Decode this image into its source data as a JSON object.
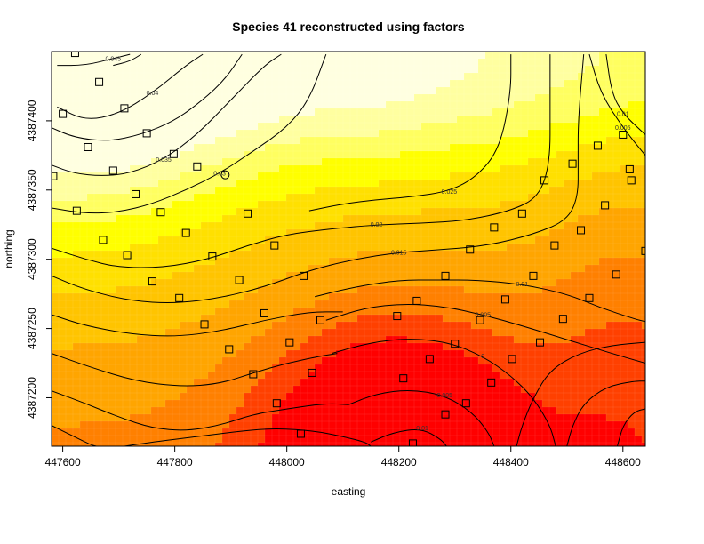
{
  "chart_data": {
    "type": "heatmap",
    "title": "Species 41 reconstructed using factors",
    "xlabel": "easting",
    "ylabel": "northing",
    "xlim": [
      447580,
      448640
    ],
    "ylim": [
      4387165,
      4387450
    ],
    "x_ticks": [
      447600,
      447800,
      448000,
      448200,
      448400,
      448600
    ],
    "y_ticks": [
      4387200,
      4387250,
      4387300,
      4387350,
      4387400
    ],
    "x_tick_labels": [
      "447600",
      "447800",
      "448000",
      "448200",
      "448400",
      "448600"
    ],
    "y_tick_labels": [
      "4387200",
      "4387250",
      "4387300",
      "4387350",
      "4387400"
    ],
    "color_scale": [
      "#ff0000",
      "#ff4000",
      "#ff8000",
      "#ffa500",
      "#ffc400",
      "#ffe000",
      "#ffff00",
      "#ffff60",
      "#ffffa0",
      "#ffffe0"
    ],
    "contours": [
      {
        "level": 0.045,
        "label": "0.045",
        "points": [
          [
            447590,
            4387440
          ],
          [
            447640,
            4387440
          ],
          [
            447690,
            4387445
          ],
          [
            447720,
            4387448
          ]
        ]
      },
      {
        "level": 0.04,
        "label": "0.04",
        "points": [
          [
            447590,
            4387410
          ],
          [
            447640,
            4387400
          ],
          [
            447700,
            4387405
          ],
          [
            447760,
            4387420
          ],
          [
            447820,
            4387440
          ],
          [
            447850,
            4387448
          ]
        ]
      },
      {
        "level": 0.035,
        "label": "0.035",
        "points": [
          [
            447580,
            4387368
          ],
          [
            447620,
            4387362
          ],
          [
            447670,
            4387360
          ],
          [
            447720,
            4387362
          ],
          [
            447780,
            4387372
          ],
          [
            447840,
            4387390
          ],
          [
            447900,
            4387415
          ],
          [
            447960,
            4387440
          ],
          [
            447990,
            4387448
          ]
        ]
      },
      {
        "level": 0.03,
        "label": "0.03",
        "points": [
          [
            447580,
            4387337
          ],
          [
            447640,
            4387333
          ],
          [
            447700,
            4387334
          ],
          [
            447760,
            4387340
          ],
          [
            447820,
            4387350
          ],
          [
            447880,
            4387362
          ],
          [
            447940,
            4387378
          ],
          [
            448000,
            4387395
          ],
          [
            448040,
            4387415
          ],
          [
            448070,
            4387448
          ]
        ]
      },
      {
        "level": 0.025,
        "label": "0.025",
        "points": [
          [
            448040,
            4387335
          ],
          [
            448100,
            4387340
          ],
          [
            448160,
            4387343
          ],
          [
            448220,
            4387345
          ],
          [
            448290,
            4387349
          ],
          [
            448340,
            4387360
          ],
          [
            448380,
            4387380
          ],
          [
            448400,
            4387420
          ],
          [
            448400,
            4387448
          ]
        ]
      },
      {
        "level": 0.02,
        "label": "0.02",
        "points": [
          [
            447580,
            4387308
          ],
          [
            447640,
            4387300
          ],
          [
            447700,
            4387294
          ],
          [
            447780,
            4387294
          ],
          [
            447860,
            4387300
          ],
          [
            447930,
            4387310
          ],
          [
            448000,
            4387318
          ],
          [
            448080,
            4387322
          ],
          [
            448160,
            4387325
          ],
          [
            448240,
            4387326
          ],
          [
            448320,
            4387328
          ],
          [
            448400,
            4387335
          ],
          [
            448450,
            4387345
          ],
          [
            448470,
            4387370
          ],
          [
            448470,
            4387410
          ],
          [
            448470,
            4387448
          ]
        ]
      },
      {
        "level": 0.015,
        "label": "0.015",
        "points": [
          [
            447580,
            4387288
          ],
          [
            447640,
            4387278
          ],
          [
            447720,
            4387270
          ],
          [
            447800,
            4387268
          ],
          [
            447880,
            4387272
          ],
          [
            447960,
            4387280
          ],
          [
            448040,
            4387292
          ],
          [
            448120,
            4387300
          ],
          [
            448200,
            4387305
          ],
          [
            448280,
            4387307
          ],
          [
            448360,
            4387310
          ],
          [
            448440,
            4387318
          ],
          [
            448500,
            4387328
          ],
          [
            448520,
            4387345
          ],
          [
            448520,
            4387370
          ],
          [
            448520,
            4387400
          ],
          [
            448530,
            4387448
          ]
        ]
      },
      {
        "level": 0.01,
        "label": "0.01",
        "points": [
          [
            448050,
            4387273
          ],
          [
            448120,
            4387280
          ],
          [
            448200,
            4387285
          ],
          [
            448270,
            4387285
          ],
          [
            448340,
            4387285
          ],
          [
            448420,
            4387282
          ],
          [
            448500,
            4387275
          ],
          [
            448560,
            4387265
          ],
          [
            448620,
            4387257
          ],
          [
            448640,
            4387255
          ]
        ]
      },
      {
        "level": 0.01,
        "label": "0.01",
        "points": [
          [
            448570,
            4387448
          ],
          [
            448580,
            4387420
          ],
          [
            448600,
            4387405
          ],
          [
            448640,
            4387390
          ]
        ]
      },
      {
        "level": 0.005,
        "label": "0.005",
        "points": [
          [
            448070,
            4387256
          ],
          [
            448140,
            4387265
          ],
          [
            448210,
            4387268
          ],
          [
            448280,
            4387266
          ],
          [
            448350,
            4387260
          ],
          [
            448420,
            4387252
          ],
          [
            448500,
            4387242
          ],
          [
            448580,
            4387232
          ],
          [
            448640,
            4387225
          ]
        ]
      },
      {
        "level": 0.005,
        "label": "0.005",
        "points": [
          [
            448540,
            4387448
          ],
          [
            448560,
            4387420
          ],
          [
            448600,
            4387395
          ],
          [
            448640,
            4387375
          ]
        ]
      },
      {
        "level": 0,
        "label": "0",
        "points": [
          [
            448080,
            4387232
          ],
          [
            448150,
            4387240
          ],
          [
            448220,
            4387243
          ],
          [
            448290,
            4387240
          ],
          [
            448350,
            4387230
          ],
          [
            448400,
            4387216
          ],
          [
            448440,
            4387200
          ],
          [
            448470,
            4387180
          ],
          [
            448480,
            4387165
          ]
        ]
      },
      {
        "level": -0.005,
        "label": "-0.005",
        "points": [
          [
            448110,
            4387195
          ],
          [
            448160,
            4387203
          ],
          [
            448220,
            4387206
          ],
          [
            448280,
            4387202
          ],
          [
            448330,
            4387190
          ],
          [
            448360,
            4387175
          ],
          [
            448370,
            4387165
          ]
        ]
      },
      {
        "level": -0.01,
        "label": "-0.01",
        "points": [
          [
            448150,
            4387168
          ],
          [
            448190,
            4387175
          ],
          [
            448240,
            4387178
          ],
          [
            448275,
            4387170
          ],
          [
            448285,
            4387165
          ]
        ]
      },
      {
        "level": 0.0,
        "label": "",
        "points": [
          [
            447580,
            4387260
          ],
          [
            447640,
            4387252
          ],
          [
            447720,
            4387246
          ],
          [
            447800,
            4387244
          ],
          [
            447880,
            4387248
          ],
          [
            447960,
            4387256
          ],
          [
            448040,
            4387262
          ],
          [
            448100,
            4387262
          ]
        ]
      },
      {
        "level": 0.0,
        "label": "",
        "points": [
          [
            447580,
            4387232
          ],
          [
            447650,
            4387222
          ],
          [
            447730,
            4387212
          ],
          [
            447810,
            4387208
          ],
          [
            447880,
            4387210
          ],
          [
            447940,
            4387218
          ],
          [
            448000,
            4387225
          ],
          [
            448060,
            4387230
          ],
          [
            448090,
            4387232
          ]
        ]
      },
      {
        "level": 0.0,
        "label": "",
        "points": [
          [
            447580,
            4387205
          ],
          [
            447640,
            4387196
          ],
          [
            447700,
            4387186
          ],
          [
            447760,
            4387178
          ],
          [
            447820,
            4387176
          ],
          [
            447880,
            4387180
          ],
          [
            447940,
            4387188
          ],
          [
            448000,
            4387192
          ],
          [
            448070,
            4387196
          ],
          [
            448110,
            4387195
          ]
        ]
      },
      {
        "level": 0.0,
        "label": "",
        "points": [
          [
            447710,
            4387165
          ],
          [
            447760,
            4387168
          ],
          [
            447840,
            4387172
          ],
          [
            447920,
            4387176
          ],
          [
            447980,
            4387178
          ],
          [
            448050,
            4387176
          ],
          [
            448100,
            4387172
          ],
          [
            448140,
            4387168
          ],
          [
            448150,
            4387165
          ]
        ]
      },
      {
        "level": 0.0,
        "label": "",
        "points": [
          [
            447580,
            4387180
          ],
          [
            447610,
            4387174
          ],
          [
            447650,
            4387166
          ],
          [
            447660,
            4387165
          ]
        ]
      },
      {
        "level": 0.0,
        "label": "",
        "points": [
          [
            448410,
            4387165
          ],
          [
            448420,
            4387180
          ],
          [
            448440,
            4387200
          ],
          [
            448470,
            4387220
          ],
          [
            448520,
            4387232
          ],
          [
            448580,
            4387238
          ],
          [
            448640,
            4387240
          ]
        ]
      },
      {
        "level": 0.0,
        "label": "",
        "points": [
          [
            448500,
            4387165
          ],
          [
            448510,
            4387180
          ],
          [
            448530,
            4387196
          ],
          [
            448570,
            4387208
          ],
          [
            448620,
            4387212
          ],
          [
            448640,
            4387212
          ]
        ]
      },
      {
        "level": 0.0,
        "label": "",
        "points": [
          [
            448590,
            4387165
          ],
          [
            448600,
            4387180
          ],
          [
            448620,
            4387190
          ],
          [
            448640,
            4387192
          ]
        ]
      },
      {
        "level": 0.0,
        "label": "",
        "points": [
          [
            447580,
            4387395
          ],
          [
            447620,
            4387388
          ],
          [
            447680,
            4387385
          ],
          [
            447740,
            4387390
          ],
          [
            447800,
            4387400
          ],
          [
            447850,
            4387415
          ],
          [
            447890,
            4387430
          ],
          [
            447920,
            4387448
          ]
        ]
      },
      {
        "level": 0.0,
        "label": "",
        "points": [
          [
            447690,
            4387440
          ],
          [
            447720,
            4387443
          ],
          [
            447740,
            4387448
          ]
        ]
      }
    ],
    "sample_points_squares": [
      [
        447622,
        4387449
      ],
      [
        447665,
        4387428
      ],
      [
        447600,
        4387405
      ],
      [
        447710,
        4387409
      ],
      [
        447645,
        4387381
      ],
      [
        447750,
        4387391
      ],
      [
        447690,
        4387364
      ],
      [
        447798,
        4387376
      ],
      [
        447840,
        4387367
      ],
      [
        447583,
        4387360
      ],
      [
        447730,
        4387347
      ],
      [
        447625,
        4387335
      ],
      [
        447775,
        4387334
      ],
      [
        447930,
        4387333
      ],
      [
        447820,
        4387319
      ],
      [
        447672,
        4387314
      ],
      [
        447978,
        4387310
      ],
      [
        448555,
        4387382
      ],
      [
        448510,
        4387369
      ],
      [
        448460,
        4387357
      ],
      [
        448615,
        4387357
      ],
      [
        448600,
        4387390
      ],
      [
        448568,
        4387339
      ],
      [
        448420,
        4387333
      ],
      [
        448370,
        4387323
      ],
      [
        448525,
        4387321
      ],
      [
        448478,
        4387310
      ],
      [
        448327,
        4387307
      ],
      [
        447715,
        4387303
      ],
      [
        447867,
        4387302
      ],
      [
        448640,
        4387306
      ],
      [
        447760,
        4387284
      ],
      [
        447915,
        4387285
      ],
      [
        448030,
        4387288
      ],
      [
        448283,
        4387288
      ],
      [
        448440,
        4387288
      ],
      [
        448588,
        4387289
      ],
      [
        447808,
        4387272
      ],
      [
        448390,
        4387271
      ],
      [
        448540,
        4387272
      ],
      [
        448232,
        4387270
      ],
      [
        447960,
        4387261
      ],
      [
        448197,
        4387259
      ],
      [
        448060,
        4387256
      ],
      [
        448345,
        4387256
      ],
      [
        448493,
        4387257
      ],
      [
        447853,
        4387253
      ],
      [
        448300,
        4387239
      ],
      [
        448452,
        4387240
      ],
      [
        448005,
        4387240
      ],
      [
        447897,
        4387235
      ],
      [
        448255,
        4387228
      ],
      [
        448402,
        4387228
      ],
      [
        447940,
        4387217
      ],
      [
        448045,
        4387218
      ],
      [
        448208,
        4387214
      ],
      [
        448365,
        4387211
      ],
      [
        447982,
        4387196
      ],
      [
        448320,
        4387196
      ],
      [
        448283,
        4387188
      ],
      [
        448025,
        4387174
      ],
      [
        448225,
        4387167
      ],
      [
        448612,
        4387365
      ]
    ],
    "sample_points_circles": [
      [
        447890,
        4387361
      ]
    ]
  }
}
